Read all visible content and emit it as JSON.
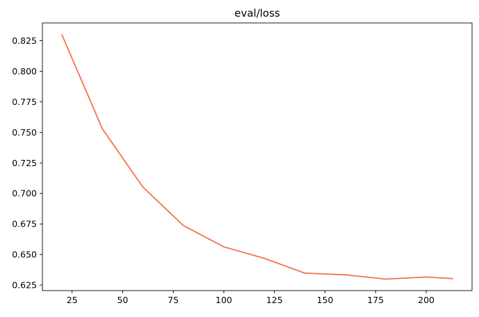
{
  "chart_data": {
    "type": "line",
    "title": "eval/loss",
    "xlabel": "",
    "ylabel": "",
    "xlim": [
      10.35,
      222.65
    ],
    "ylim": [
      0.6205,
      0.8395
    ],
    "x_ticks": [
      25,
      50,
      75,
      100,
      125,
      150,
      175,
      200
    ],
    "x_tick_labels": [
      "25",
      "50",
      "75",
      "100",
      "125",
      "150",
      "175",
      "200"
    ],
    "y_ticks": [
      0.625,
      0.65,
      0.675,
      0.7,
      0.725,
      0.75,
      0.775,
      0.8,
      0.825
    ],
    "y_tick_labels": [
      "0.625",
      "0.650",
      "0.675",
      "0.700",
      "0.725",
      "0.750",
      "0.775",
      "0.800",
      "0.825"
    ],
    "grid": false,
    "series": [
      {
        "color": "#f4714a",
        "x": [
          20,
          40,
          60,
          80,
          100,
          120,
          140,
          160,
          180,
          200,
          213
        ],
        "values": [
          0.8298,
          0.7528,
          0.7052,
          0.6737,
          0.6563,
          0.6469,
          0.6348,
          0.6334,
          0.6299,
          0.6316,
          0.6303
        ]
      }
    ]
  }
}
